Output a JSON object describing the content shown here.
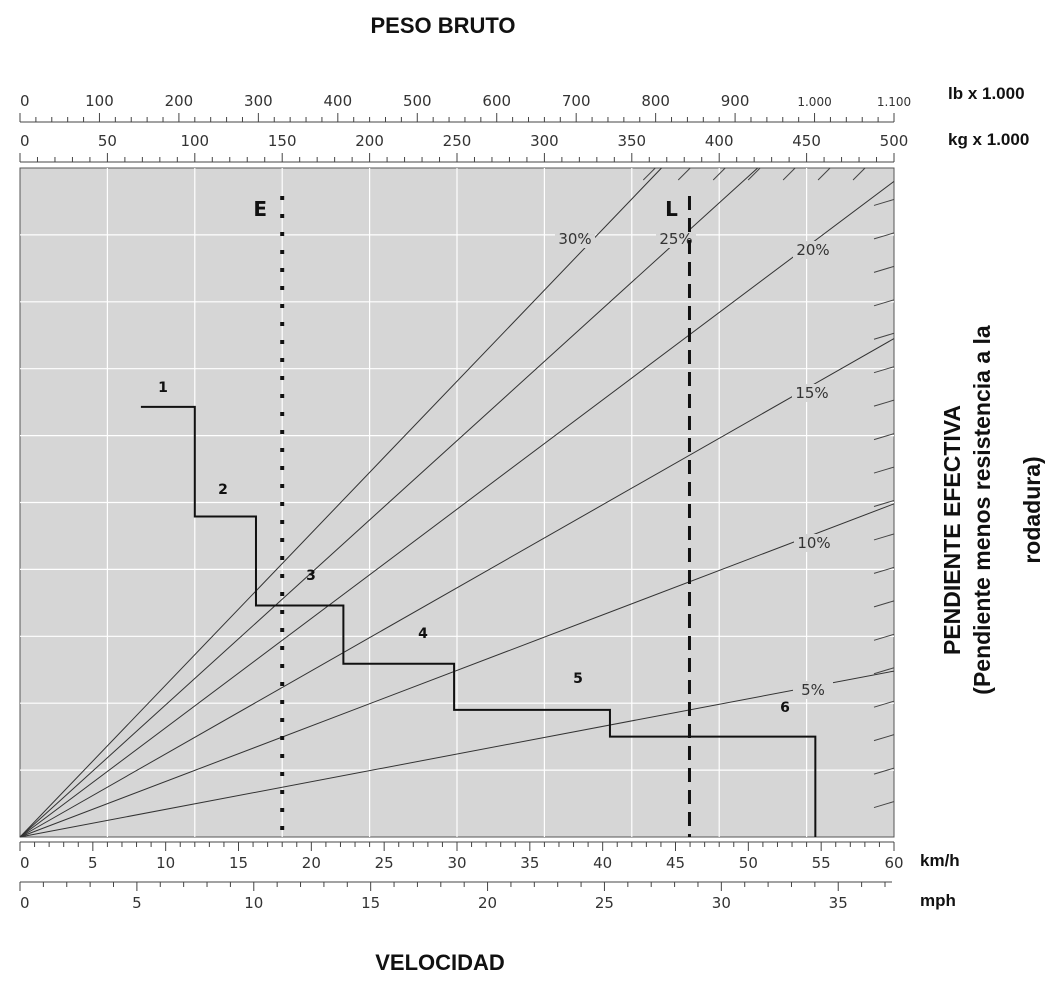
{
  "chart_data": {
    "type": "line",
    "title": "PESO BRUTO",
    "xlabel": "VELOCIDAD",
    "ylabel": "PENDIENTE EFECTIVA",
    "ylabel2": "(Pendiente menos resistencia a la rodadura)",
    "top_axes": [
      {
        "unit": "lb x 1.000",
        "range": [
          0,
          1100
        ],
        "ticks": [
          "0",
          "100",
          "200",
          "300",
          "400",
          "500",
          "600",
          "700",
          "800",
          "900",
          "1.000",
          "1.100"
        ],
        "tick_values": [
          0,
          100,
          200,
          300,
          400,
          500,
          600,
          700,
          800,
          900,
          1000,
          1100
        ]
      },
      {
        "unit": "kg x 1.000",
        "range": [
          0,
          500
        ],
        "ticks": [
          "0",
          "50",
          "100",
          "150",
          "200",
          "250",
          "300",
          "350",
          "400",
          "450",
          "500"
        ],
        "tick_values": [
          0,
          50,
          100,
          150,
          200,
          250,
          300,
          350,
          400,
          450,
          500
        ]
      }
    ],
    "bottom_axes": [
      {
        "unit": "km/h",
        "range": [
          0,
          60
        ],
        "ticks": [
          "0",
          "5",
          "10",
          "15",
          "20",
          "25",
          "30",
          "35",
          "40",
          "45",
          "50",
          "55",
          "60"
        ],
        "tick_values": [
          0,
          5,
          10,
          15,
          20,
          25,
          30,
          35,
          40,
          45,
          50,
          55,
          60
        ]
      },
      {
        "unit": "mph",
        "range": [
          0,
          37.3
        ],
        "ticks": [
          "0",
          "5",
          "10",
          "15",
          "20",
          "25",
          "30",
          "35"
        ],
        "tick_values": [
          0,
          5,
          10,
          15,
          20,
          25,
          30,
          35
        ]
      }
    ],
    "grade_lines": [
      {
        "label": "30%",
        "end_kg": 367
      },
      {
        "label": "25%",
        "end_kg": 422
      },
      {
        "label": "20%",
        "end_kg": 500,
        "end_frac": 0.98
      },
      {
        "label": "15%",
        "end_kg": 500,
        "end_frac": 0.745
      },
      {
        "label": "10%",
        "end_kg": 500,
        "end_frac": 0.498
      },
      {
        "label": "5%",
        "end_kg": 500,
        "end_frac": 0.248
      }
    ],
    "gears": [
      {
        "label": "1",
        "from_kmh": 8.3,
        "to_kmh": 12,
        "rimpull_frac": 0.643
      },
      {
        "label": "2",
        "from_kmh": 12,
        "to_kmh": 16.2,
        "rimpull_frac": 0.479
      },
      {
        "label": "3",
        "from_kmh": 16.2,
        "to_kmh": 22.2,
        "rimpull_frac": 0.346
      },
      {
        "label": "4",
        "from_kmh": 22.2,
        "to_kmh": 29.8,
        "rimpull_frac": 0.259
      },
      {
        "label": "5",
        "from_kmh": 29.8,
        "to_kmh": 40.5,
        "rimpull_frac": 0.19
      },
      {
        "label": "6",
        "from_kmh": 40.5,
        "to_kmh": 54.6,
        "rimpull_frac": 0.15
      }
    ],
    "reference_lines": [
      {
        "label": "E",
        "style": "dotted",
        "kg": 150
      },
      {
        "label": "L",
        "style": "dashed",
        "kg": 383
      }
    ],
    "grid": true
  }
}
